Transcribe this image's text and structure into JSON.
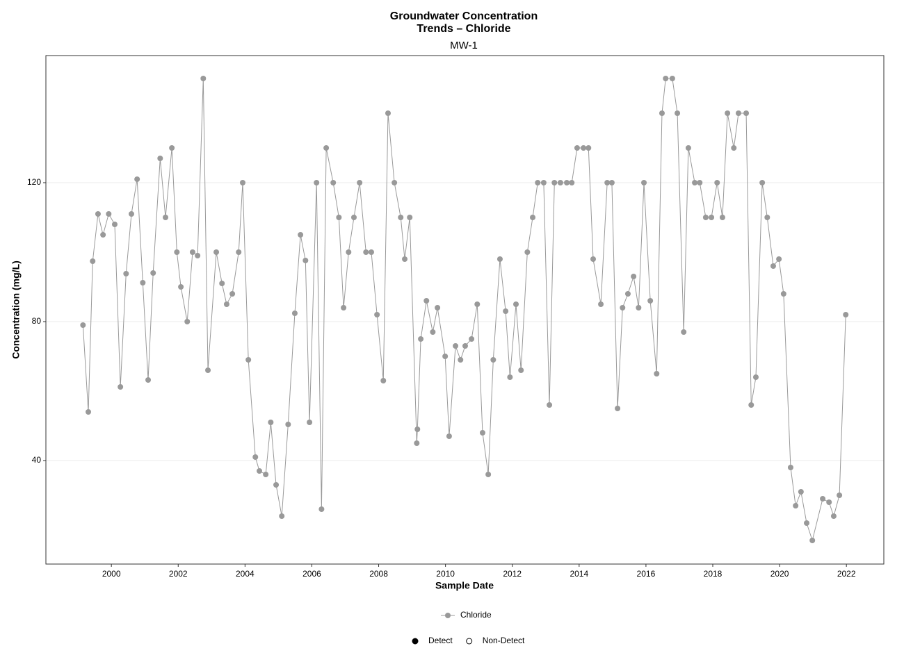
{
  "chart_data": {
    "type": "line",
    "title": [
      "Groundwater Concentration",
      "Trends – Chloride"
    ],
    "subtitle": "MW-1",
    "xlabel": "Sample Date",
    "ylabel": "Concentration (mg/L)",
    "xlim": [
      1998.04,
      2023.12
    ],
    "ylim": [
      10.2,
      156.6
    ],
    "xticks": [
      2000,
      2002,
      2004,
      2006,
      2008,
      2010,
      2012,
      2014,
      2016,
      2018,
      2020,
      2022
    ],
    "yticks": [
      40,
      80,
      120
    ],
    "grid": "y",
    "series": [
      {
        "name": "Chloride",
        "color": "#999999",
        "x": [
          1999.15,
          1999.31,
          1999.44,
          1999.6,
          1999.75,
          1999.92,
          2000.1,
          2000.27,
          2000.44,
          2000.6,
          2000.77,
          2000.94,
          2001.1,
          2001.25,
          2001.46,
          2001.62,
          2001.81,
          2001.96,
          2002.08,
          2002.27,
          2002.43,
          2002.58,
          2002.75,
          2002.89,
          2003.14,
          2003.31,
          2003.45,
          2003.62,
          2003.81,
          2003.93,
          2004.1,
          2004.31,
          2004.43,
          2004.62,
          2004.77,
          2004.93,
          2005.1,
          2005.29,
          2005.49,
          2005.66,
          2005.81,
          2005.93,
          2006.14,
          2006.29,
          2006.43,
          2006.64,
          2006.81,
          2006.95,
          2007.1,
          2007.26,
          2007.43,
          2007.62,
          2007.78,
          2007.95,
          2008.14,
          2008.28,
          2008.47,
          2008.66,
          2008.78,
          2008.93,
          2009.14,
          2009.16,
          2009.26,
          2009.43,
          2009.62,
          2009.76,
          2009.99,
          2010.11,
          2010.3,
          2010.45,
          2010.59,
          2010.78,
          2010.95,
          2011.11,
          2011.28,
          2011.43,
          2011.63,
          2011.8,
          2011.93,
          2012.11,
          2012.26,
          2012.45,
          2012.61,
          2012.76,
          2012.94,
          2013.11,
          2013.26,
          2013.44,
          2013.63,
          2013.78,
          2013.94,
          2014.13,
          2014.28,
          2014.42,
          2014.65,
          2014.84,
          2014.98,
          2015.15,
          2015.3,
          2015.46,
          2015.63,
          2015.78,
          2015.94,
          2016.13,
          2016.32,
          2016.48,
          2016.59,
          2016.79,
          2016.94,
          2017.13,
          2017.27,
          2017.46,
          2017.61,
          2017.79,
          2017.96,
          2018.13,
          2018.29,
          2018.44,
          2018.63,
          2018.77,
          2019.0,
          2019.15,
          2019.29,
          2019.48,
          2019.63,
          2019.81,
          2019.98,
          2020.12,
          2020.33,
          2020.48,
          2020.64,
          2020.81,
          2020.98,
          2021.29,
          2021.48,
          2021.62,
          2021.79,
          2021.98
        ],
        "values": [
          79,
          54,
          97.4,
          111,
          105,
          111,
          108,
          61.2,
          93.8,
          111,
          121,
          91.2,
          63.2,
          94,
          127,
          110,
          130,
          100,
          90,
          80,
          100,
          99,
          150,
          66,
          100,
          91,
          85,
          88,
          100,
          120,
          69,
          41,
          37,
          36,
          51,
          33,
          24,
          50.4,
          82.4,
          105,
          97.6,
          51,
          120,
          26,
          130,
          120,
          110,
          84,
          100,
          110,
          120,
          100,
          100,
          82,
          63,
          140,
          120,
          110,
          98,
          110,
          45,
          49,
          75,
          86,
          77,
          84,
          70,
          47,
          73,
          69,
          73,
          75,
          85,
          48,
          36,
          69,
          98,
          83,
          64,
          85,
          66,
          100,
          110,
          120,
          120,
          56,
          120,
          120,
          120,
          120,
          130,
          130,
          130,
          98,
          85,
          120,
          120,
          55,
          84,
          88,
          93,
          84,
          120,
          86,
          65,
          140,
          150,
          150,
          140,
          77,
          130,
          120,
          120,
          110,
          110,
          120,
          110,
          140,
          130,
          140,
          140,
          56,
          64,
          120,
          110,
          96,
          98,
          88,
          38,
          27,
          31,
          22,
          17,
          29,
          28,
          24,
          30,
          82
        ]
      }
    ],
    "shape_legend": [
      {
        "label": "Detect",
        "filled": true
      },
      {
        "label": "Non-Detect",
        "filled": false
      }
    ]
  }
}
